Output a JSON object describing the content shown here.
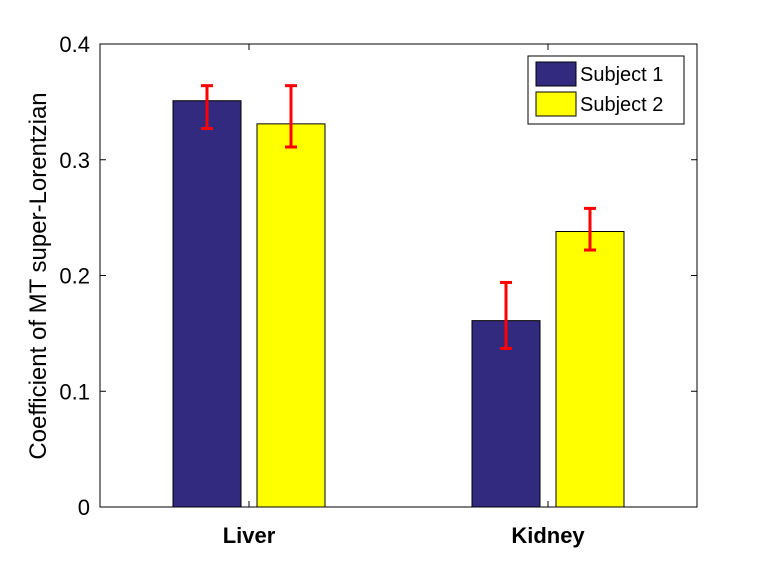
{
  "chart_data": {
    "type": "bar",
    "title": "",
    "xlabel": "",
    "ylabel": "Coefficient of MT super-Lorentzian",
    "categories": [
      "Liver",
      "Kidney"
    ],
    "ylim": [
      0,
      0.4
    ],
    "yticks": [
      0,
      0.1,
      0.2,
      0.3,
      0.4
    ],
    "ytick_labels": [
      "0",
      "0.1",
      "0.2",
      "0.3",
      "0.4"
    ],
    "grid": false,
    "legend_position": "top-right",
    "series": [
      {
        "name": "Subject 1",
        "color": "#312a7f",
        "values": [
          0.351,
          0.161
        ],
        "error_low": [
          0.327,
          0.137
        ],
        "error_high": [
          0.364,
          0.194
        ]
      },
      {
        "name": "Subject 2",
        "color": "#ffff00",
        "values": [
          0.331,
          0.238
        ],
        "error_low": [
          0.311,
          0.222
        ],
        "error_high": [
          0.364,
          0.258
        ]
      }
    ],
    "error_bar_color": "#ff0000"
  }
}
